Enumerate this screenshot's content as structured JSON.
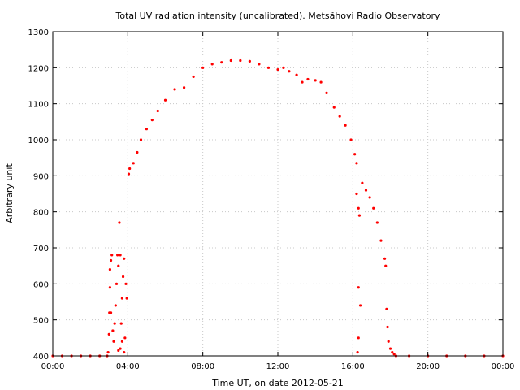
{
  "chart_data": {
    "type": "scatter",
    "title": "Total UV radiation intensity (uncalibrated). Metsähovi Radio Observatory",
    "xlabel": "Time UT, on date 2012-05-21",
    "ylabel": "Arbitrary unit",
    "xlim": [
      0,
      24
    ],
    "ylim": [
      400,
      1300
    ],
    "x_tick_labels": [
      "00:00",
      "04:00",
      "08:00",
      "12:00",
      "16:00",
      "20:00",
      "00:00"
    ],
    "x_tick_values": [
      0,
      4,
      8,
      12,
      16,
      20,
      24
    ],
    "y_tick_values": [
      400,
      500,
      600,
      700,
      800,
      900,
      1000,
      1100,
      1200,
      1300
    ],
    "grid": true,
    "marker_color": "#ff0000",
    "series": [
      {
        "x_unit": "hours UT",
        "points": [
          [
            0.0,
            400
          ],
          [
            0.5,
            400
          ],
          [
            1.0,
            400
          ],
          [
            1.5,
            400
          ],
          [
            2.0,
            400
          ],
          [
            2.5,
            400
          ],
          [
            2.9,
            400
          ],
          [
            2.95,
            410
          ],
          [
            3.0,
            460
          ],
          [
            3.02,
            520
          ],
          [
            3.05,
            590
          ],
          [
            3.05,
            640
          ],
          [
            3.1,
            665
          ],
          [
            3.15,
            680
          ],
          [
            3.1,
            520
          ],
          [
            3.2,
            470
          ],
          [
            3.25,
            440
          ],
          [
            3.3,
            490
          ],
          [
            3.35,
            540
          ],
          [
            3.4,
            600
          ],
          [
            3.45,
            680
          ],
          [
            3.5,
            650
          ],
          [
            3.55,
            770
          ],
          [
            3.6,
            680
          ],
          [
            3.6,
            420
          ],
          [
            3.65,
            490
          ],
          [
            3.7,
            560
          ],
          [
            3.75,
            620
          ],
          [
            3.8,
            670
          ],
          [
            3.7,
            440
          ],
          [
            3.8,
            410
          ],
          [
            3.85,
            450
          ],
          [
            3.9,
            600
          ],
          [
            3.95,
            560
          ],
          [
            3.5,
            415
          ],
          [
            4.05,
            905
          ],
          [
            4.1,
            920
          ],
          [
            4.3,
            935
          ],
          [
            4.5,
            965
          ],
          [
            4.7,
            1000
          ],
          [
            5.0,
            1030
          ],
          [
            5.3,
            1055
          ],
          [
            5.6,
            1080
          ],
          [
            6.0,
            1110
          ],
          [
            6.5,
            1140
          ],
          [
            7.0,
            1145
          ],
          [
            7.5,
            1175
          ],
          [
            8.0,
            1200
          ],
          [
            8.5,
            1210
          ],
          [
            9.0,
            1215
          ],
          [
            9.5,
            1220
          ],
          [
            10.0,
            1220
          ],
          [
            10.5,
            1218
          ],
          [
            11.0,
            1210
          ],
          [
            11.5,
            1200
          ],
          [
            12.0,
            1195
          ],
          [
            12.3,
            1200
          ],
          [
            12.6,
            1190
          ],
          [
            13.0,
            1180
          ],
          [
            13.3,
            1160
          ],
          [
            13.6,
            1168
          ],
          [
            14.0,
            1165
          ],
          [
            14.3,
            1160
          ],
          [
            14.6,
            1130
          ],
          [
            15.0,
            1090
          ],
          [
            15.3,
            1065
          ],
          [
            15.6,
            1040
          ],
          [
            15.9,
            1000
          ],
          [
            16.1,
            960
          ],
          [
            16.2,
            935
          ],
          [
            16.2,
            850
          ],
          [
            16.3,
            810
          ],
          [
            16.35,
            790
          ],
          [
            16.3,
            590
          ],
          [
            16.4,
            540
          ],
          [
            16.3,
            450
          ],
          [
            16.25,
            410
          ],
          [
            16.5,
            880
          ],
          [
            16.7,
            860
          ],
          [
            16.9,
            840
          ],
          [
            17.1,
            810
          ],
          [
            17.3,
            770
          ],
          [
            17.5,
            720
          ],
          [
            17.7,
            670
          ],
          [
            17.75,
            650
          ],
          [
            17.8,
            530
          ],
          [
            17.85,
            480
          ],
          [
            17.9,
            440
          ],
          [
            18.0,
            420
          ],
          [
            18.1,
            410
          ],
          [
            18.2,
            405
          ],
          [
            18.3,
            400
          ],
          [
            19.0,
            400
          ],
          [
            20.0,
            400
          ],
          [
            21.0,
            400
          ],
          [
            22.0,
            400
          ],
          [
            23.0,
            400
          ],
          [
            24.0,
            400
          ]
        ]
      }
    ]
  }
}
